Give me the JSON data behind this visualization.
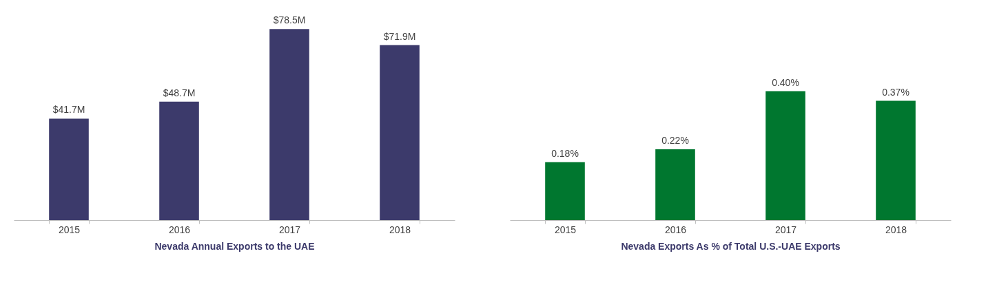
{
  "chart_data": [
    {
      "type": "bar",
      "xlabel": "Nevada Annual Exports to the UAE",
      "categories": [
        "2015",
        "2016",
        "2017",
        "2018"
      ],
      "values": [
        41.7,
        48.7,
        78.5,
        71.9
      ],
      "color": "#3c3a6b",
      "value_labels": [
        "$41.7M",
        "$48.7M",
        "$78.5M",
        "$71.9M"
      ]
    },
    {
      "type": "bar",
      "xlabel": "Nevada Exports As % of Total U.S.-UAE Exports",
      "categories": [
        "2015",
        "2016",
        "2017",
        "2018"
      ],
      "values": [
        0.18,
        0.22,
        0.4,
        0.37
      ],
      "color": "#00772f",
      "value_labels": [
        "0.18%",
        "0.22%",
        "0.40%",
        "0.37%"
      ]
    }
  ]
}
